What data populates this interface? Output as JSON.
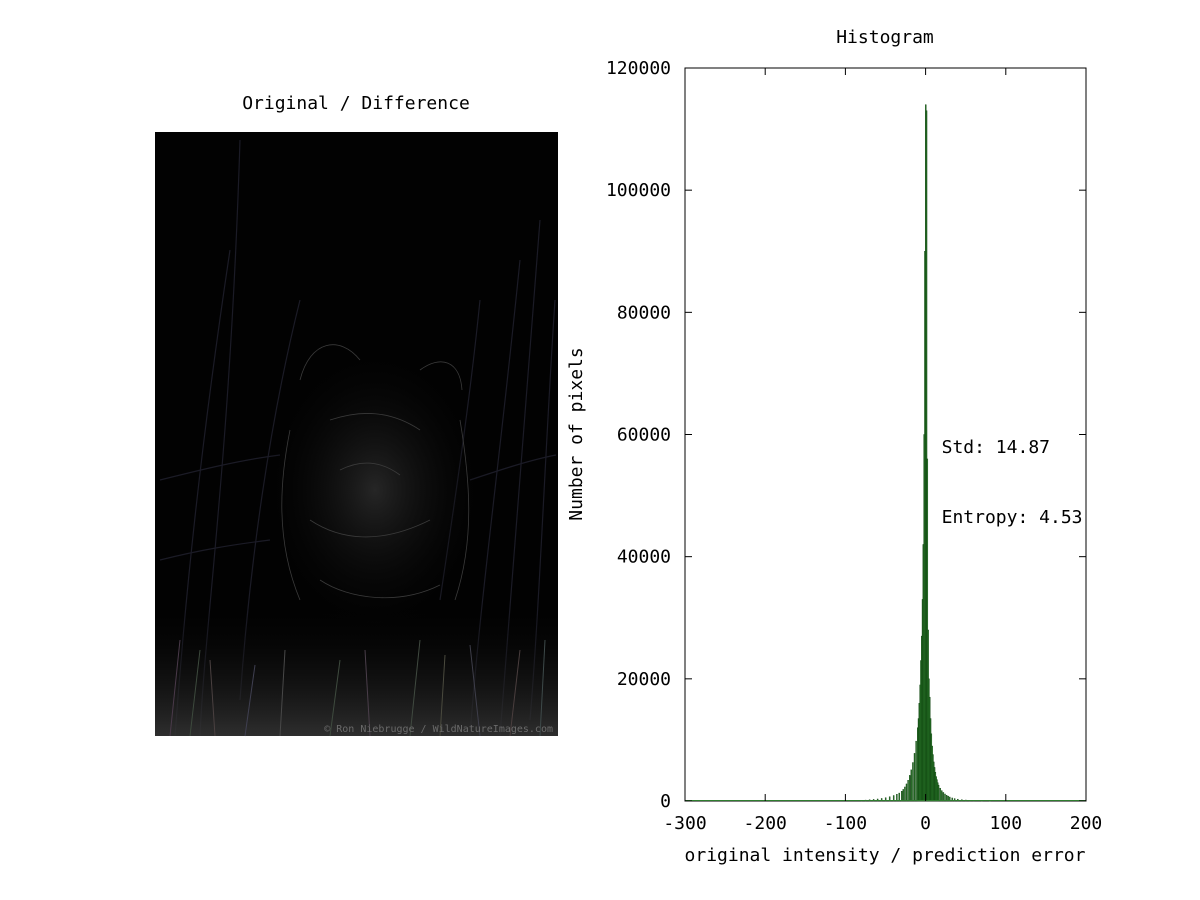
{
  "image_panel": {
    "title": "Original / Difference",
    "watermark": "© Ron Niebrugge / WildNatureImages.com"
  },
  "chart_data": {
    "type": "bar",
    "title": "Histogram",
    "xlabel": "original intensity / prediction error",
    "ylabel": "Number of pixels",
    "xlim": [
      -300,
      200
    ],
    "ylim": [
      0,
      120000
    ],
    "xticks": [
      -300,
      -200,
      -100,
      0,
      100,
      200
    ],
    "yticks": [
      0,
      20000,
      40000,
      60000,
      80000,
      100000,
      120000
    ],
    "grid": false,
    "bar_color": "#2e7d2e",
    "annotations": [
      {
        "text": "Std: 14.87",
        "x": 20,
        "y": 57000
      },
      {
        "text": "Entropy: 4.53",
        "x": 20,
        "y": 45500
      }
    ],
    "series": [
      {
        "x": [
          -80,
          -75,
          -70,
          -65,
          -60,
          -55,
          -50,
          -45,
          -40,
          -36,
          -33,
          -30,
          -28,
          -26,
          -24,
          -22,
          -20,
          -18,
          -16,
          -14,
          -12,
          -10,
          -9,
          -8,
          -7,
          -6,
          -5,
          -4,
          -3,
          -2,
          -1,
          0,
          1,
          2,
          3,
          4,
          5,
          6,
          7,
          8,
          9,
          10,
          11,
          12,
          13,
          14,
          15,
          16,
          18,
          20,
          22,
          24,
          26,
          28,
          30,
          33,
          36,
          40,
          45,
          50,
          55,
          60,
          70,
          80
        ],
        "values": [
          100,
          150,
          200,
          260,
          330,
          420,
          540,
          700,
          900,
          1100,
          1300,
          1600,
          1900,
          2300,
          2800,
          3400,
          4200,
          5100,
          6300,
          7800,
          9800,
          12000,
          13500,
          16000,
          19000,
          23000,
          27000,
          33000,
          42000,
          60000,
          90000,
          114000,
          113000,
          56000,
          28000,
          20000,
          17000,
          13500,
          11000,
          9000,
          7600,
          6400,
          5500,
          4700,
          4000,
          3500,
          3000,
          2600,
          2100,
          1700,
          1400,
          1150,
          950,
          800,
          650,
          500,
          400,
          300,
          220,
          160,
          120,
          90,
          60,
          40
        ]
      }
    ]
  }
}
